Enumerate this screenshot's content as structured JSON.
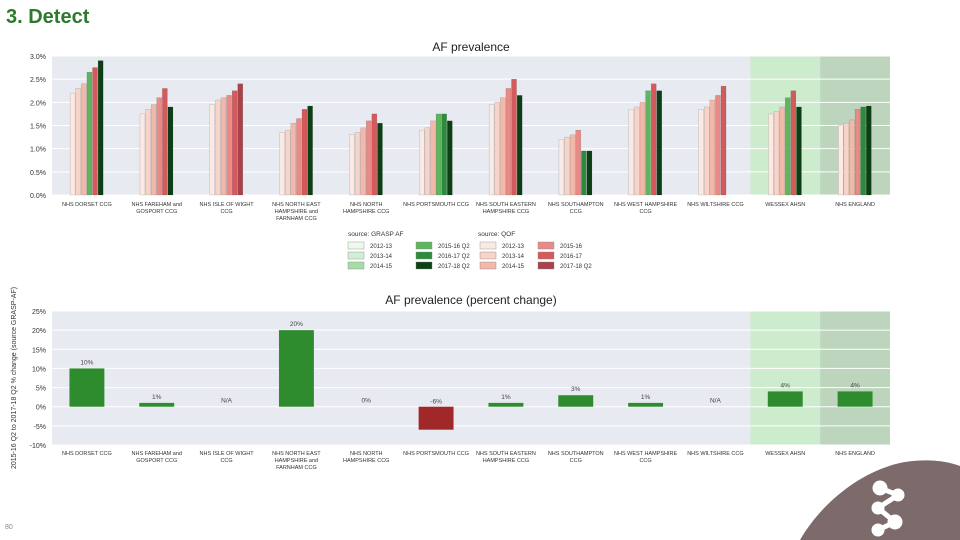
{
  "slide": {
    "title": "3. Detect",
    "page_number": "80"
  },
  "colors": {
    "plot_bg": "#e8eaf2",
    "wessex_band": "#cdeccd",
    "england_band": "#bcd5bc",
    "grasp": [
      "#eef8ee",
      "#d3efd3",
      "#a6dca6",
      "#5fb55f",
      "#2e8b3e",
      "#0d3f14"
    ],
    "qof": [
      "#fbe9e4",
      "#f7d4ca",
      "#f2b9ab",
      "#e88a85",
      "#d45b5b",
      "#a8424c"
    ],
    "positive_bar": "#2e8b2e",
    "negative_bar": "#a02828",
    "footer_shape": "#7d6b6b"
  },
  "chart_data": [
    {
      "type": "bar",
      "title": "AF prevalence",
      "categories": [
        "NHS DORSET CCG",
        "NHS FAREHAM and GOSPORT CCG",
        "NHS ISLE OF WIGHT CCG",
        "NHS NORTH EAST HAMPSHIRE and FARNHAM CCG",
        "NHS NORTH HAMPSHIRE CCG",
        "NHS PORTSMOUTH CCG",
        "NHS SOUTH EASTERN HAMPSHIRE CCG",
        "NHS SOUTHAMPTON CCG",
        "NHS WEST HAMPSHIRE CCG",
        "NHS WILTSHIRE CCG",
        "WESSEX AHSN",
        "NHS ENGLAND"
      ],
      "y_ticks": [
        "0.0%",
        "0.5%",
        "1.0%",
        "1.5%",
        "2.0%",
        "2.5%",
        "3.0%"
      ],
      "ylim": [
        0,
        3.0
      ],
      "grid": true,
      "highlight_bands": [
        "WESSEX AHSN",
        "NHS ENGLAND"
      ],
      "legend": {
        "placement": "bottom-center",
        "grasp_header": "source: GRASP AF",
        "qof_header": "source: QOF",
        "grasp_entries": [
          "2012-13",
          "2013-14",
          "2014-15",
          "2015-16 Q2",
          "2016-17 Q2",
          "2017-18 Q2"
        ],
        "qof_entries": [
          "2012-13",
          "2013-14",
          "2014-15",
          "2015-16",
          "2016-17",
          "2017-18 Q2"
        ]
      },
      "series_values": [
        [
          2.2,
          2.3,
          2.4,
          2.65,
          2.75,
          2.9
        ],
        [
          1.75,
          1.85,
          1.95,
          2.1,
          2.3,
          1.9
        ],
        [
          1.95,
          2.05,
          2.1,
          2.15,
          2.25,
          2.4
        ],
        [
          1.35,
          1.4,
          1.55,
          1.65,
          1.85,
          1.92
        ],
        [
          1.3,
          1.35,
          1.45,
          1.6,
          1.75,
          1.55
        ],
        [
          1.4,
          1.45,
          1.6,
          1.75,
          1.75,
          1.6
        ],
        [
          1.95,
          2.0,
          2.1,
          2.3,
          2.5,
          2.15
        ],
        [
          1.2,
          1.25,
          1.3,
          1.4,
          0.95,
          0.95
        ],
        [
          1.85,
          1.9,
          2.0,
          2.25,
          2.4,
          2.25
        ],
        [
          1.85,
          1.9,
          2.05,
          2.15,
          2.35,
          null
        ],
        [
          1.75,
          1.8,
          1.9,
          2.1,
          2.25,
          1.9
        ],
        [
          1.5,
          1.55,
          1.62,
          1.85,
          1.9,
          1.92
        ]
      ],
      "series_colors": [
        [
          0,
          1,
          2,
          3,
          4,
          5
        ],
        [
          0,
          1,
          2,
          3,
          4,
          5
        ],
        [
          0,
          1,
          2,
          3,
          4,
          5
        ],
        [
          0,
          1,
          2,
          3,
          4,
          5
        ],
        [
          0,
          1,
          2,
          3,
          4,
          5
        ],
        [
          0,
          1,
          2,
          3,
          4,
          5
        ],
        [
          0,
          1,
          2,
          3,
          4,
          5
        ],
        [
          0,
          1,
          2,
          3,
          4,
          5
        ],
        [
          0,
          1,
          2,
          3,
          4,
          5
        ],
        [
          0,
          1,
          2,
          3,
          4,
          5
        ],
        [
          0,
          1,
          2,
          3,
          4,
          5
        ],
        [
          0,
          1,
          2,
          3,
          4,
          5
        ]
      ],
      "series_sources": [
        [
          "qof",
          "qof",
          "qof",
          "grasp",
          "qof",
          "grasp"
        ],
        [
          "qof",
          "qof",
          "qof",
          "qof",
          "qof",
          "grasp"
        ],
        [
          "qof",
          "qof",
          "qof",
          "qof",
          "qof",
          "qof"
        ],
        [
          "qof",
          "qof",
          "qof",
          "qof",
          "qof",
          "grasp"
        ],
        [
          "qof",
          "qof",
          "qof",
          "qof",
          "qof",
          "grasp"
        ],
        [
          "qof",
          "qof",
          "qof",
          "grasp",
          "grasp",
          "grasp"
        ],
        [
          "qof",
          "qof",
          "qof",
          "qof",
          "qof",
          "grasp"
        ],
        [
          "qof",
          "qof",
          "qof",
          "qof",
          "grasp",
          "grasp"
        ],
        [
          "qof",
          "qof",
          "qof",
          "grasp",
          "qof",
          "grasp"
        ],
        [
          "qof",
          "qof",
          "qof",
          "qof",
          "qof",
          "qof"
        ],
        [
          "qof",
          "qof",
          "qof",
          "grasp",
          "qof",
          "grasp"
        ],
        [
          "qof",
          "qof",
          "qof",
          "qof",
          "grasp",
          "grasp"
        ]
      ]
    },
    {
      "type": "bar",
      "title": "AF prevalence (percent change)",
      "ylabel": "2015-16 Q2 to 2017-18 Q2 % change (source GRASP-AF)",
      "categories": [
        "NHS DORSET CCG",
        "NHS FAREHAM and GOSPORT CCG",
        "NHS ISLE OF WIGHT CCG",
        "NHS NORTH EAST HAMPSHIRE and FARNHAM CCG",
        "NHS NORTH HAMPSHIRE CCG",
        "NHS PORTSMOUTH CCG",
        "NHS SOUTH EASTERN HAMPSHIRE CCG",
        "NHS SOUTHAMPTON CCG",
        "NHS WEST HAMPSHIRE CCG",
        "NHS WILTSHIRE CCG",
        "WESSEX AHSN",
        "NHS ENGLAND"
      ],
      "values": [
        10,
        1,
        null,
        20,
        0,
        -6,
        1,
        3,
        1,
        null,
        4,
        4
      ],
      "data_labels": [
        "10%",
        "1%",
        "N/A",
        "20%",
        "0%",
        "-6%",
        "1%",
        "3%",
        "1%",
        "N/A",
        "4%",
        "4%"
      ],
      "y_ticks": [
        "-10%",
        "-5%",
        "0%",
        "5%",
        "10%",
        "15%",
        "20%",
        "25%"
      ],
      "ylim": [
        -10,
        25
      ],
      "grid": true,
      "highlight_bands": [
        "WESSEX AHSN",
        "NHS ENGLAND"
      ]
    }
  ]
}
